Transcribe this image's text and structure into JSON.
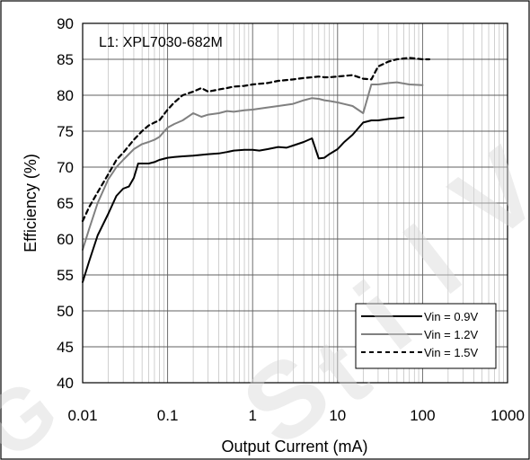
{
  "chart_data": {
    "type": "line",
    "annotation": "L1: XPL7030-682M",
    "xlabel": "Output Current (mA)",
    "ylabel": "Efficiency (%)",
    "x_scale": "log",
    "xlim": [
      0.01,
      1000
    ],
    "ylim": [
      40,
      90
    ],
    "x_ticks": [
      "0.01",
      "0.1",
      "1",
      "10",
      "100",
      "1000"
    ],
    "y_ticks": [
      "40",
      "45",
      "50",
      "55",
      "60",
      "65",
      "70",
      "75",
      "80",
      "85",
      "90"
    ],
    "grid": true,
    "legend_position": "bottom-right",
    "series": [
      {
        "name": "Vin = 0.9V",
        "color": "#000000",
        "style": "solid",
        "x": [
          0.01,
          0.012,
          0.015,
          0.02,
          0.025,
          0.03,
          0.035,
          0.04,
          0.045,
          0.05,
          0.06,
          0.07,
          0.08,
          0.1,
          0.12,
          0.15,
          0.2,
          0.3,
          0.4,
          0.5,
          0.6,
          0.8,
          1,
          1.2,
          1.5,
          2,
          2.5,
          3,
          4,
          5,
          6,
          7,
          8,
          10,
          12,
          15,
          20,
          25,
          30,
          40,
          50,
          60
        ],
        "y": [
          54,
          57,
          60.5,
          63.5,
          66,
          67,
          67.3,
          68.5,
          70.5,
          70.5,
          70.5,
          70.7,
          71,
          71.3,
          71.4,
          71.5,
          71.6,
          71.8,
          71.9,
          72.1,
          72.3,
          72.4,
          72.4,
          72.3,
          72.5,
          72.8,
          72.7,
          73,
          73.5,
          74,
          71.2,
          71.3,
          71.8,
          72.5,
          73.5,
          74.5,
          76.2,
          76.5,
          76.5,
          76.7,
          76.8,
          76.9
        ]
      },
      {
        "name": "Vin = 1.2V",
        "color": "#808080",
        "style": "solid",
        "x": [
          0.01,
          0.012,
          0.015,
          0.02,
          0.025,
          0.03,
          0.04,
          0.05,
          0.06,
          0.07,
          0.08,
          0.1,
          0.12,
          0.15,
          0.2,
          0.25,
          0.3,
          0.4,
          0.5,
          0.6,
          0.8,
          1,
          1.5,
          2,
          3,
          4,
          5,
          6,
          7,
          8,
          10,
          15,
          20,
          25,
          30,
          40,
          50,
          70,
          100
        ],
        "y": [
          58.5,
          61.5,
          65,
          68.3,
          70,
          71,
          72.5,
          73.2,
          73.5,
          73.8,
          74.2,
          75.5,
          76,
          76.5,
          77.5,
          77,
          77.3,
          77.5,
          77.8,
          77.7,
          77.9,
          78,
          78.3,
          78.5,
          78.8,
          79.3,
          79.6,
          79.5,
          79.3,
          79.2,
          79,
          78.5,
          77.5,
          81.5,
          81.5,
          81.7,
          81.8,
          81.5,
          81.4
        ]
      },
      {
        "name": "Vin = 1.5V",
        "color": "#000000",
        "style": "dashed",
        "x": [
          0.01,
          0.012,
          0.015,
          0.02,
          0.025,
          0.03,
          0.04,
          0.05,
          0.06,
          0.07,
          0.08,
          0.1,
          0.12,
          0.15,
          0.2,
          0.25,
          0.3,
          0.4,
          0.5,
          0.6,
          0.8,
          1,
          1.5,
          2,
          3,
          4,
          5,
          6,
          7,
          8,
          10,
          15,
          20,
          25,
          30,
          40,
          50,
          70,
          100,
          120
        ],
        "y": [
          62.5,
          64.5,
          66.5,
          69,
          71,
          72,
          73.8,
          75,
          75.8,
          76.2,
          76.5,
          78,
          79,
          80,
          80.5,
          81,
          80.5,
          80.8,
          81,
          81.2,
          81.3,
          81.5,
          81.7,
          82,
          82.2,
          82.4,
          82.5,
          82.6,
          82.5,
          82.5,
          82.6,
          82.8,
          82.3,
          82.2,
          84,
          84.7,
          85,
          85.2,
          85,
          85
        ]
      }
    ]
  }
}
